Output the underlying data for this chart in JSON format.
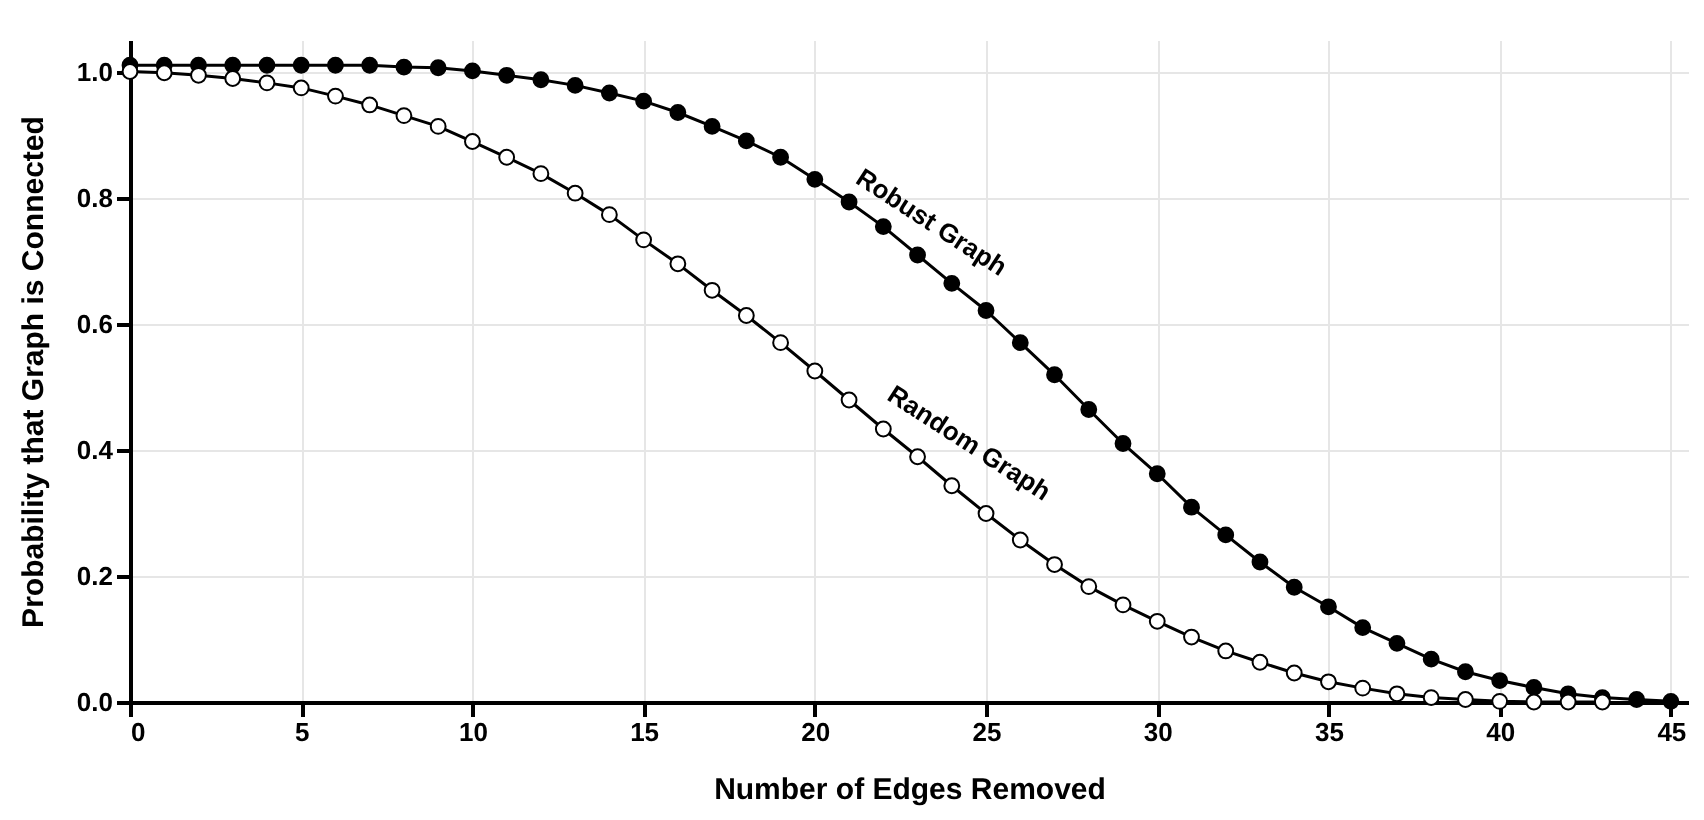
{
  "chart_data": {
    "type": "line",
    "xlabel": "Number of Edges Removed",
    "ylabel": "Probability that Graph is Connected",
    "xlim": [
      0,
      45.5
    ],
    "ylim": [
      0,
      1.05
    ],
    "xticks": [
      0,
      5,
      10,
      15,
      20,
      25,
      30,
      35,
      40,
      45
    ],
    "yticks": [
      {
        "value": 0,
        "label": "0.0"
      },
      {
        "value": 0.2,
        "label": "0.2"
      },
      {
        "value": 0.4,
        "label": "0.4"
      },
      {
        "value": 0.6,
        "label": "0.6"
      },
      {
        "value": 0.8,
        "label": "0.8"
      },
      {
        "value": 1,
        "label": "1.0"
      }
    ],
    "grid": true,
    "marker": "circle",
    "line_style": "solid",
    "series": [
      {
        "color": "#000000",
        "x": [
          0,
          1,
          2,
          3,
          4,
          5,
          6,
          7,
          8,
          9,
          10,
          11,
          12,
          13,
          14,
          15,
          16,
          17,
          18,
          19,
          20,
          21,
          22,
          23,
          24,
          25,
          26,
          27,
          28,
          29,
          30,
          31,
          32,
          33,
          34,
          35,
          36,
          37,
          38,
          39,
          40,
          41,
          42,
          43,
          44,
          45
        ],
        "values": [
          1.01,
          1.01,
          1.01,
          1.01,
          1.01,
          1.01,
          1.01,
          1.01,
          1.007,
          1.006,
          1.001,
          0.994,
          0.987,
          0.978,
          0.966,
          0.953,
          0.935,
          0.913,
          0.89,
          0.864,
          0.829,
          0.793,
          0.754,
          0.709,
          0.664,
          0.621,
          0.57,
          0.519,
          0.464,
          0.41,
          0.362,
          0.309,
          0.265,
          0.222,
          0.182,
          0.151,
          0.118,
          0.093,
          0.068,
          0.048,
          0.034,
          0.023,
          0.013,
          0.007,
          0.004,
          0.001
        ]
      },
      {
        "color": "#000000",
        "x": [
          0,
          1,
          2,
          3,
          4,
          5,
          6,
          7,
          8,
          9,
          10,
          11,
          12,
          13,
          14,
          15,
          16,
          17,
          18,
          19,
          20,
          21,
          22,
          23,
          24,
          25,
          26,
          27,
          28,
          29,
          30,
          31,
          32,
          33,
          34,
          35,
          36,
          37,
          38,
          39,
          40,
          41,
          42,
          43
        ],
        "values": [
          1.0,
          0.998,
          0.994,
          0.989,
          0.982,
          0.974,
          0.961,
          0.947,
          0.93,
          0.913,
          0.889,
          0.864,
          0.838,
          0.807,
          0.773,
          0.733,
          0.695,
          0.653,
          0.613,
          0.57,
          0.525,
          0.479,
          0.433,
          0.389,
          0.343,
          0.299,
          0.257,
          0.218,
          0.183,
          0.154,
          0.128,
          0.103,
          0.081,
          0.063,
          0.046,
          0.032,
          0.022,
          0.013,
          0.007,
          0.004,
          0.001,
          0.0,
          0.0,
          0.0
        ]
      }
    ],
    "annotations": [
      "Robust Graph",
      "Random Graph"
    ]
  }
}
